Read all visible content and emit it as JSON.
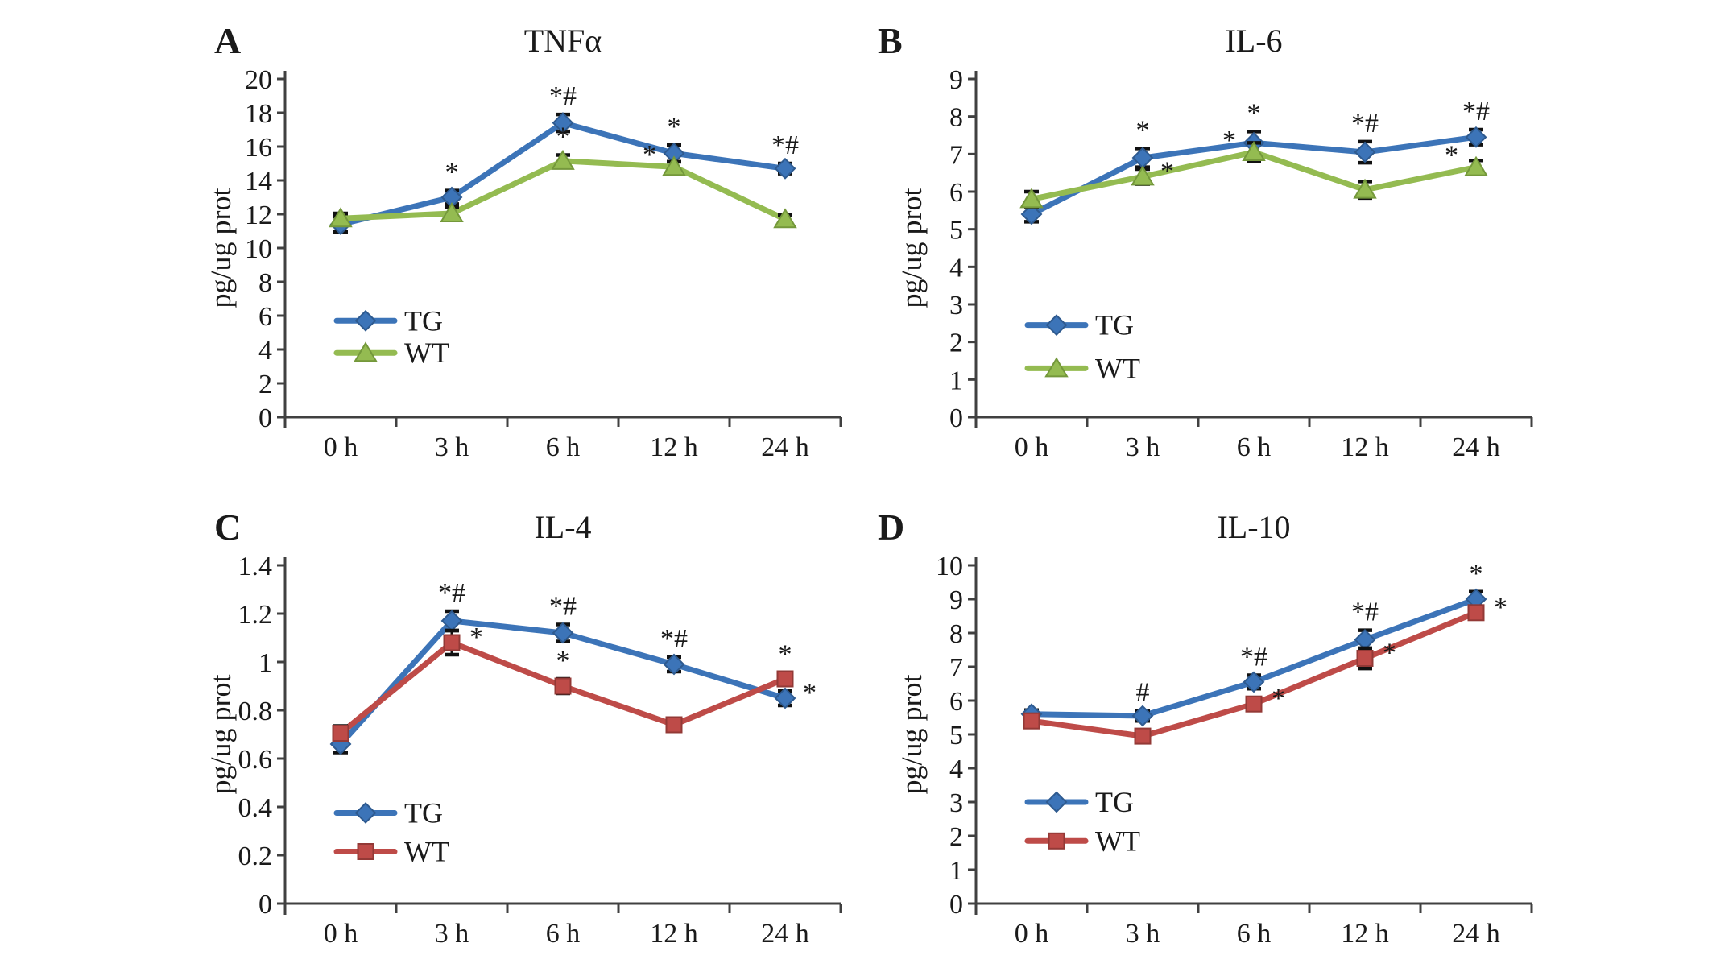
{
  "figure": {
    "background": "#ffffff",
    "axis_color": "#404040",
    "text_color": "#1a1a1a",
    "error_bar_color": "#111111",
    "accent_colors": {
      "tg_blue": "#3C74B8",
      "wt_green": "#94BB51",
      "wt_red": "#BE4B48"
    }
  },
  "chart_data": [
    {
      "panel": "A",
      "type": "line",
      "title": "TNFα",
      "ylabel": "pg/ug prot",
      "ylim": [
        0,
        20
      ],
      "ytick_step": 2,
      "ytick_labels": [
        "0",
        "2",
        "4",
        "6",
        "8",
        "10",
        "12",
        "14",
        "16",
        "18",
        "20"
      ],
      "categories": [
        "0 h",
        "3 h",
        "6 h",
        "12 h",
        "24 h"
      ],
      "grid": false,
      "legend_position": "inside-lower-left",
      "legend_rows_y": [
        5.7,
        3.8
      ],
      "series": [
        {
          "name": "TG",
          "marker": "diamond",
          "color": "#3C74B8",
          "border": "#2E5A8F",
          "values": [
            11.4,
            13.0,
            17.4,
            15.6,
            14.7
          ],
          "errors": [
            0.45,
            0.4,
            0.5,
            0.5,
            0.3
          ],
          "annotations": [
            null,
            {
              "text": "*",
              "pos": "above"
            },
            {
              "text": "*#",
              "pos": "above"
            },
            {
              "text": "*",
              "pos": "above"
            },
            {
              "text": "*#",
              "pos": "above"
            }
          ]
        },
        {
          "name": "WT",
          "marker": "triangle",
          "color": "#94BB51",
          "border": "#74983B",
          "values": [
            11.75,
            12.05,
            15.15,
            14.8,
            11.7
          ],
          "errors": [
            0.3,
            0.35,
            0.35,
            0.3,
            0.25
          ],
          "annotations": [
            null,
            null,
            {
              "text": "*",
              "pos": "above"
            },
            {
              "text": "*",
              "pos": "left"
            },
            null
          ]
        }
      ]
    },
    {
      "panel": "B",
      "type": "line",
      "title": "IL-6",
      "ylabel": "pg/ug prot",
      "ylim": [
        0,
        9
      ],
      "ytick_step": 1,
      "ytick_labels": [
        "0",
        "1",
        "2",
        "3",
        "4",
        "5",
        "6",
        "7",
        "8",
        "9"
      ],
      "categories": [
        "0 h",
        "3 h",
        "6 h",
        "12 h",
        "24 h"
      ],
      "grid": false,
      "legend_position": "inside-lower-left",
      "legend_rows_y": [
        2.45,
        1.3
      ],
      "series": [
        {
          "name": "TG",
          "marker": "diamond",
          "color": "#3C74B8",
          "border": "#2E5A8F",
          "values": [
            5.4,
            6.9,
            7.3,
            7.05,
            7.45
          ],
          "errors": [
            0.2,
            0.25,
            0.3,
            0.28,
            0.2
          ],
          "annotations": [
            null,
            {
              "text": "*",
              "pos": "above"
            },
            {
              "text": "*",
              "pos": "above"
            },
            {
              "text": "*#",
              "pos": "above"
            },
            {
              "text": "*#",
              "pos": "above"
            }
          ]
        },
        {
          "name": "WT",
          "marker": "triangle",
          "color": "#94BB51",
          "border": "#74983B",
          "values": [
            5.8,
            6.4,
            7.05,
            6.05,
            6.65
          ],
          "errors": [
            0.2,
            0.2,
            0.25,
            0.22,
            0.18
          ],
          "annotations": [
            null,
            {
              "text": "*",
              "pos": "right"
            },
            {
              "text": "*",
              "pos": "left"
            },
            null,
            {
              "text": "*",
              "pos": "left"
            }
          ]
        }
      ]
    },
    {
      "panel": "C",
      "type": "line",
      "title": "IL-4",
      "ylabel": "pg/ug prot",
      "ylim": [
        0,
        1.4
      ],
      "ytick_step": 0.2,
      "ytick_labels": [
        "0",
        "0.2",
        "0.4",
        "0.6",
        "0.8",
        "1",
        "1.2",
        "1.4"
      ],
      "categories": [
        "0 h",
        "3 h",
        "6 h",
        "12 h",
        "24 h"
      ],
      "grid": false,
      "legend_position": "inside-lower-left",
      "legend_rows_y": [
        0.375,
        0.215
      ],
      "series": [
        {
          "name": "TG",
          "marker": "diamond",
          "color": "#3C74B8",
          "border": "#2E5A8F",
          "values": [
            0.66,
            1.17,
            1.12,
            0.99,
            0.85
          ],
          "errors": [
            0.035,
            0.04,
            0.035,
            0.03,
            0.03
          ],
          "annotations": [
            null,
            {
              "text": "*#",
              "pos": "above"
            },
            {
              "text": "*#",
              "pos": "above"
            },
            {
              "text": "*#",
              "pos": "above"
            },
            {
              "text": "*",
              "pos": "right"
            }
          ]
        },
        {
          "name": "WT",
          "marker": "square",
          "color": "#BE4B48",
          "border": "#933936",
          "values": [
            0.705,
            1.08,
            0.9,
            0.74,
            0.93
          ],
          "errors": [
            0.03,
            0.05,
            0.03,
            0.025,
            0.025
          ],
          "annotations": [
            null,
            {
              "text": "*",
              "pos": "right"
            },
            {
              "text": "*",
              "pos": "above"
            },
            null,
            {
              "text": "*",
              "pos": "above"
            }
          ]
        }
      ]
    },
    {
      "panel": "D",
      "type": "line",
      "title": "IL-10",
      "ylabel": "pg/ug prot",
      "ylim": [
        0,
        10
      ],
      "ytick_step": 1,
      "ytick_labels": [
        "0",
        "1",
        "2",
        "3",
        "4",
        "5",
        "6",
        "7",
        "8",
        "9",
        "10"
      ],
      "categories": [
        "0 h",
        "3 h",
        "6 h",
        "12 h",
        "24 h"
      ],
      "grid": false,
      "legend_position": "inside-lower-left",
      "legend_rows_y": [
        3.0,
        1.85
      ],
      "series": [
        {
          "name": "TG",
          "marker": "diamond",
          "color": "#3C74B8",
          "border": "#2E5A8F",
          "values": [
            5.6,
            5.55,
            6.55,
            7.8,
            9.0
          ],
          "errors": [
            0.12,
            0.15,
            0.2,
            0.28,
            0.22
          ],
          "annotations": [
            null,
            {
              "text": "#",
              "pos": "above"
            },
            {
              "text": "*#",
              "pos": "above"
            },
            {
              "text": "*#",
              "pos": "above"
            },
            {
              "text": "*",
              "pos": "above"
            }
          ]
        },
        {
          "name": "WT",
          "marker": "square",
          "color": "#BE4B48",
          "border": "#933936",
          "values": [
            5.4,
            4.95,
            5.9,
            7.25,
            8.6
          ],
          "errors": [
            0.1,
            0.1,
            0.12,
            0.3,
            0.18
          ],
          "annotations": [
            null,
            null,
            {
              "text": "*",
              "pos": "right"
            },
            {
              "text": "*",
              "pos": "right"
            },
            {
              "text": "*",
              "pos": "right"
            }
          ]
        }
      ]
    }
  ]
}
